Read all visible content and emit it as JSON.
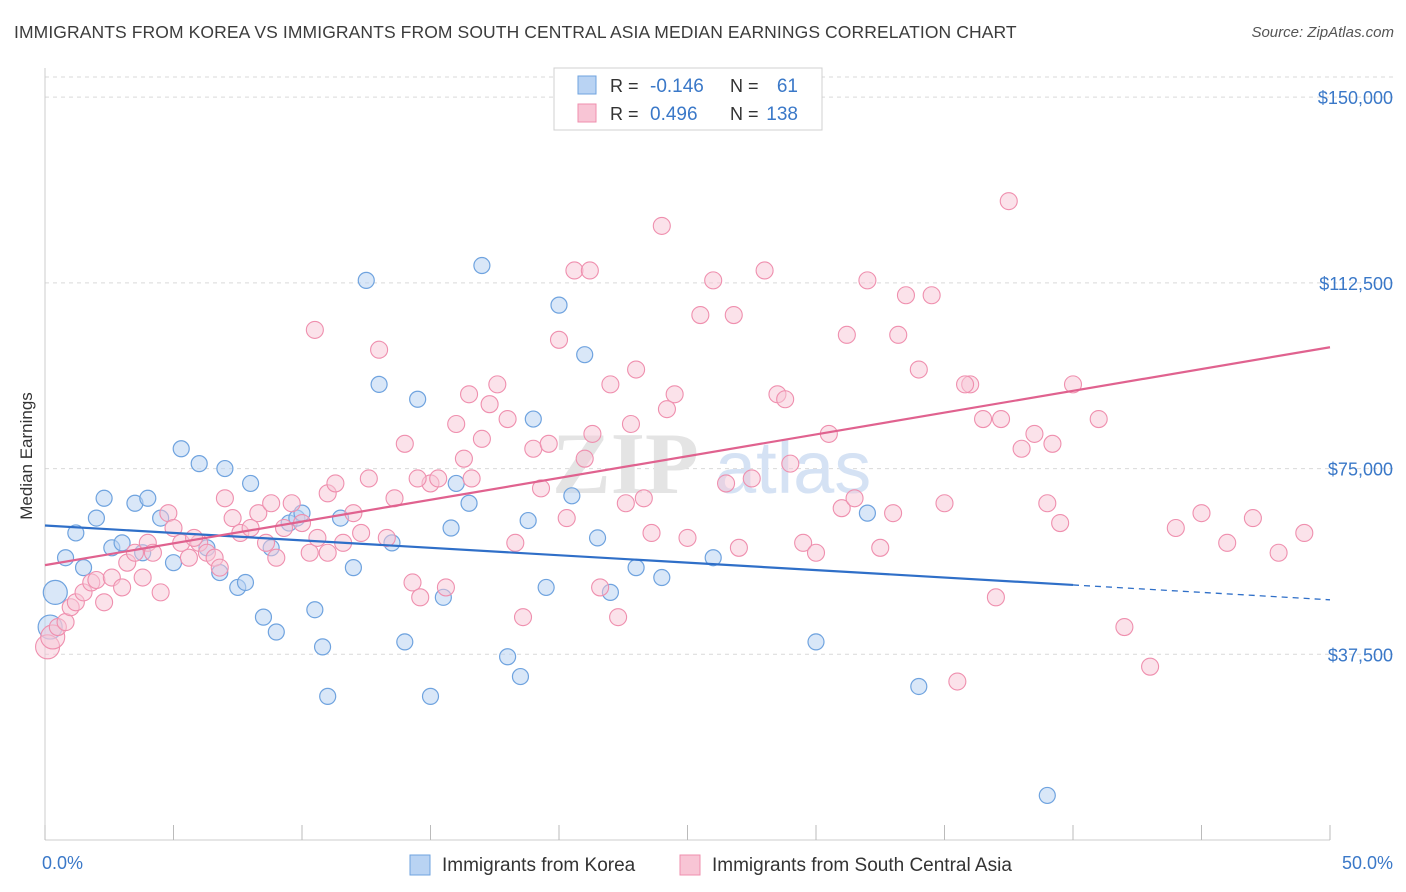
{
  "header": {
    "title": "IMMIGRANTS FROM KOREA VS IMMIGRANTS FROM SOUTH CENTRAL ASIA MEDIAN EARNINGS CORRELATION CHART",
    "source": "Source: ZipAtlas.com"
  },
  "watermark": {
    "zip": "ZIP",
    "atlas": "atlas"
  },
  "colors": {
    "korea": "#6fa3df",
    "korea_fill": "#b9d3f3",
    "sca": "#ef8fae",
    "sca_fill": "#f8c5d5",
    "korea_line": "#2f6fc8",
    "sca_line": "#e0628f",
    "tick_text": "#3a78c8",
    "grid": "#d9d9d9"
  },
  "chart_data": {
    "type": "scatter",
    "title": "IMMIGRANTS FROM KOREA VS IMMIGRANTS FROM SOUTH CENTRAL ASIA MEDIAN EARNINGS CORRELATION CHART",
    "xlabel": "",
    "ylabel": "Median Earnings",
    "xlim": [
      0,
      50
    ],
    "ylim": [
      0,
      157500
    ],
    "x_ticks": [
      0,
      5,
      10,
      15,
      20,
      25,
      30,
      35,
      40,
      45,
      50
    ],
    "x_tick_labels": {
      "left": "0.0%",
      "right": "50.0%"
    },
    "y_ticks": [
      37500,
      75000,
      112500,
      150000
    ],
    "y_tick_labels": [
      "$37,500",
      "$75,000",
      "$112,500",
      "$150,000"
    ],
    "grid": true,
    "legend_position": "top-center",
    "stats": [
      {
        "r_label": "R =",
        "r": "-0.146",
        "n_label": "N =",
        "n": "61"
      },
      {
        "r_label": "R =",
        "r": "0.496",
        "n_label": "N =",
        "n": "138"
      }
    ],
    "series": [
      {
        "name": "Immigrants from Korea",
        "trend": {
          "x0": 0,
          "y0": 63500,
          "x1": 40,
          "y1": 51500,
          "dash_to_x": 50,
          "dash_to_y": 48500
        },
        "points": [
          [
            0.2,
            43000
          ],
          [
            0.4,
            50000
          ],
          [
            0.8,
            57000
          ],
          [
            1.2,
            62000
          ],
          [
            1.5,
            55000
          ],
          [
            2,
            65000
          ],
          [
            2.3,
            69000
          ],
          [
            2.6,
            59000
          ],
          [
            3,
            60000
          ],
          [
            3.5,
            68000
          ],
          [
            3.8,
            58000
          ],
          [
            4,
            69000
          ],
          [
            4.5,
            65000
          ],
          [
            5,
            56000
          ],
          [
            5.3,
            79000
          ],
          [
            6,
            76000
          ],
          [
            6.3,
            59000
          ],
          [
            6.8,
            54000
          ],
          [
            7,
            75000
          ],
          [
            7.5,
            51000
          ],
          [
            7.8,
            52000
          ],
          [
            8,
            72000
          ],
          [
            8.5,
            45000
          ],
          [
            8.8,
            59000
          ],
          [
            9,
            42000
          ],
          [
            9.5,
            64000
          ],
          [
            9.8,
            65000
          ],
          [
            10,
            66000
          ],
          [
            10.5,
            46500
          ],
          [
            10.8,
            39000
          ],
          [
            11,
            29000
          ],
          [
            11.5,
            65000
          ],
          [
            12,
            55000
          ],
          [
            12.5,
            113000
          ],
          [
            13,
            92000
          ],
          [
            13.5,
            60000
          ],
          [
            14,
            40000
          ],
          [
            14.5,
            89000
          ],
          [
            15,
            29000
          ],
          [
            15.5,
            49000
          ],
          [
            15.8,
            63000
          ],
          [
            16,
            72000
          ],
          [
            16.5,
            68000
          ],
          [
            17,
            116000
          ],
          [
            18,
            37000
          ],
          [
            18.5,
            33000
          ],
          [
            18.8,
            64500
          ],
          [
            19,
            85000
          ],
          [
            19.5,
            51000
          ],
          [
            20,
            108000
          ],
          [
            20.5,
            69500
          ],
          [
            21,
            98000
          ],
          [
            21.5,
            61000
          ],
          [
            22,
            50000
          ],
          [
            23,
            55000
          ],
          [
            24,
            53000
          ],
          [
            26,
            57000
          ],
          [
            30,
            40000
          ],
          [
            32,
            66000
          ],
          [
            34,
            31000
          ],
          [
            39,
            9000
          ]
        ]
      },
      {
        "name": "Immigrants from South Central Asia",
        "trend": {
          "x0": 0,
          "y0": 55500,
          "x1": 50,
          "y1": 99500
        },
        "points": [
          [
            0.1,
            39000
          ],
          [
            0.3,
            41000
          ],
          [
            0.5,
            43000
          ],
          [
            0.8,
            44000
          ],
          [
            1,
            47000
          ],
          [
            1.2,
            48000
          ],
          [
            1.5,
            50000
          ],
          [
            1.8,
            52000
          ],
          [
            2,
            52500
          ],
          [
            2.3,
            48000
          ],
          [
            2.6,
            53000
          ],
          [
            3,
            51000
          ],
          [
            3.2,
            56000
          ],
          [
            3.5,
            58000
          ],
          [
            3.8,
            53000
          ],
          [
            4,
            60000
          ],
          [
            4.2,
            58000
          ],
          [
            4.5,
            50000
          ],
          [
            4.8,
            66000
          ],
          [
            5,
            63000
          ],
          [
            5.3,
            60000
          ],
          [
            5.6,
            57000
          ],
          [
            6,
            60000
          ],
          [
            6.3,
            58000
          ],
          [
            6.6,
            57000
          ],
          [
            7,
            69000
          ],
          [
            7.3,
            65000
          ],
          [
            7.6,
            62000
          ],
          [
            8,
            63000
          ],
          [
            8.3,
            66000
          ],
          [
            8.6,
            60000
          ],
          [
            9,
            57000
          ],
          [
            9.3,
            63000
          ],
          [
            9.6,
            68000
          ],
          [
            10,
            64000
          ],
          [
            10.3,
            58000
          ],
          [
            10.6,
            61000
          ],
          [
            11,
            70000
          ],
          [
            11.3,
            72000
          ],
          [
            11.6,
            60000
          ],
          [
            12,
            66000
          ],
          [
            12.3,
            62000
          ],
          [
            12.6,
            73000
          ],
          [
            13,
            99000
          ],
          [
            13.3,
            61000
          ],
          [
            13.6,
            69000
          ],
          [
            14,
            80000
          ],
          [
            14.3,
            52000
          ],
          [
            14.6,
            49000
          ],
          [
            15,
            72000
          ],
          [
            15.3,
            73000
          ],
          [
            15.6,
            51000
          ],
          [
            16,
            84000
          ],
          [
            16.3,
            77000
          ],
          [
            16.6,
            73000
          ],
          [
            17,
            81000
          ],
          [
            17.3,
            88000
          ],
          [
            17.6,
            92000
          ],
          [
            18,
            85000
          ],
          [
            18.3,
            60000
          ],
          [
            18.6,
            45000
          ],
          [
            19,
            79000
          ],
          [
            19.3,
            71000
          ],
          [
            19.6,
            80000
          ],
          [
            20,
            101000
          ],
          [
            20.3,
            65000
          ],
          [
            20.6,
            115000
          ],
          [
            21,
            77000
          ],
          [
            21.3,
            82000
          ],
          [
            21.6,
            51000
          ],
          [
            22,
            92000
          ],
          [
            22.3,
            45000
          ],
          [
            22.6,
            68000
          ],
          [
            23,
            95000
          ],
          [
            23.3,
            69000
          ],
          [
            23.6,
            62000
          ],
          [
            24,
            124000
          ],
          [
            24.5,
            90000
          ],
          [
            25,
            61000
          ],
          [
            25.5,
            106000
          ],
          [
            26,
            113000
          ],
          [
            26.5,
            72000
          ],
          [
            27,
            59000
          ],
          [
            27.5,
            73000
          ],
          [
            28,
            115000
          ],
          [
            28.5,
            90000
          ],
          [
            29,
            76000
          ],
          [
            29.5,
            60000
          ],
          [
            30,
            58000
          ],
          [
            30.5,
            82000
          ],
          [
            31,
            67000
          ],
          [
            31.5,
            69000
          ],
          [
            32,
            113000
          ],
          [
            32.5,
            59000
          ],
          [
            33,
            66000
          ],
          [
            33.5,
            110000
          ],
          [
            34,
            95000
          ],
          [
            34.5,
            110000
          ],
          [
            35,
            68000
          ],
          [
            35.5,
            32000
          ],
          [
            36,
            92000
          ],
          [
            36.5,
            85000
          ],
          [
            37,
            49000
          ],
          [
            37.5,
            129000
          ],
          [
            38,
            79000
          ],
          [
            38.5,
            82000
          ],
          [
            39,
            68000
          ],
          [
            39.5,
            64000
          ],
          [
            40,
            92000
          ],
          [
            41,
            85000
          ],
          [
            42,
            43000
          ],
          [
            43,
            35000
          ],
          [
            44,
            63000
          ],
          [
            45,
            66000
          ],
          [
            46,
            60000
          ],
          [
            47,
            65000
          ],
          [
            48,
            58000
          ],
          [
            49,
            62000
          ],
          [
            10.5,
            103000
          ],
          [
            11,
            58000
          ],
          [
            14.5,
            73000
          ],
          [
            16.5,
            90000
          ],
          [
            21.2,
            115000
          ],
          [
            22.8,
            84000
          ],
          [
            24.2,
            87000
          ],
          [
            26.8,
            106000
          ],
          [
            28.8,
            89000
          ],
          [
            31.2,
            102000
          ],
          [
            33.2,
            102000
          ],
          [
            35.8,
            92000
          ],
          [
            37.2,
            85000
          ],
          [
            39.2,
            80000
          ],
          [
            5.8,
            61000
          ],
          [
            6.8,
            55000
          ],
          [
            8.8,
            68000
          ]
        ]
      }
    ]
  },
  "legend": {
    "bottom": [
      {
        "label": "Immigrants from Korea"
      },
      {
        "label": "Immigrants from South Central Asia"
      }
    ]
  }
}
